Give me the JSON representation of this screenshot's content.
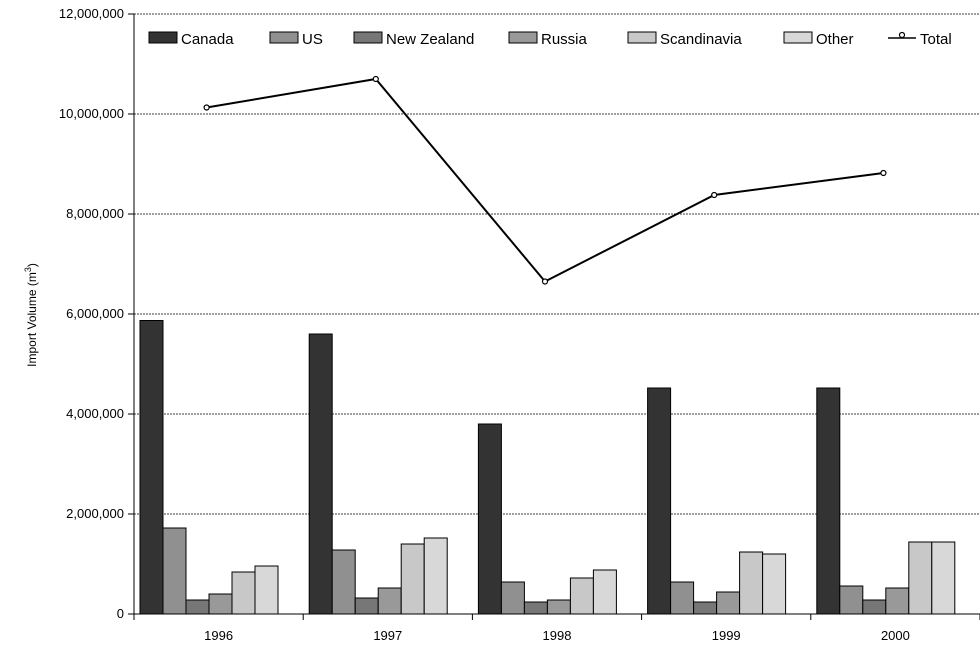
{
  "chart_data": {
    "type": "bar",
    "title": "",
    "xlabel": "",
    "ylabel": "Import Volume (m",
    "ylabel_sup": "3",
    "ylabel_close": ")",
    "categories": [
      "1996",
      "1997",
      "1998",
      "1999",
      "2000"
    ],
    "ylim": [
      0,
      12000000
    ],
    "ytick_values": [
      0,
      2000000,
      4000000,
      6000000,
      8000000,
      10000000,
      12000000
    ],
    "ytick_labels": [
      "0",
      "2,000,000",
      "4,000,000",
      "6,000,000",
      "8,000,000",
      "10,000,000",
      "12,000,000"
    ],
    "grid": true,
    "legend_placement": "top",
    "series": [
      {
        "name": "Canada",
        "type": "bar",
        "color": "#333333",
        "values": [
          5870000,
          5600000,
          3800000,
          4520000,
          4520000
        ]
      },
      {
        "name": "US",
        "type": "bar",
        "color": "#909090",
        "values": [
          1720000,
          1280000,
          640000,
          640000,
          560000
        ]
      },
      {
        "name": "New Zealand",
        "type": "bar",
        "color": "#777777",
        "values": [
          280000,
          320000,
          240000,
          240000,
          280000
        ]
      },
      {
        "name": "Russia",
        "type": "bar",
        "color": "#999999",
        "values": [
          400000,
          520000,
          280000,
          440000,
          520000
        ]
      },
      {
        "name": "Scandinavia",
        "type": "bar",
        "color": "#c8c8c8",
        "values": [
          840000,
          1400000,
          720000,
          1240000,
          1440000
        ]
      },
      {
        "name": "Other",
        "type": "bar",
        "color": "#d8d8d8",
        "values": [
          960000,
          1520000,
          880000,
          1200000,
          1440000
        ]
      },
      {
        "name": "Total",
        "type": "line",
        "color": "#000000",
        "values": [
          10130000,
          10700000,
          6650000,
          8380000,
          8820000
        ]
      }
    ]
  }
}
